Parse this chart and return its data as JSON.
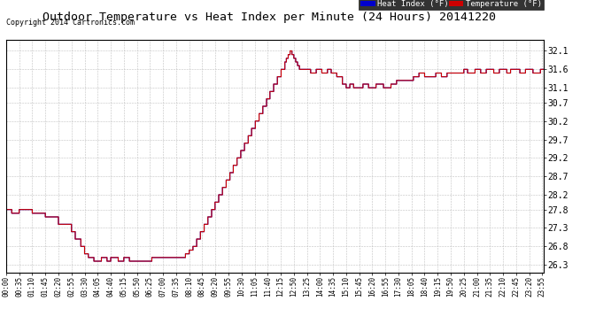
{
  "title": "Outdoor Temperature vs Heat Index per Minute (24 Hours) 20141220",
  "copyright_text": "Copyright 2014 Cartronics.com",
  "legend_heat_label": "Heat Index (°F)",
  "legend_temp_label": "Temperature (°F)",
  "heat_index_color": "#0000cc",
  "temp_color": "#cc0000",
  "background_color": "#ffffff",
  "plot_bg_color": "#ffffff",
  "grid_color": "#bbbbbb",
  "title_fontsize": 10,
  "copyright_fontsize": 6.5,
  "ytick_values": [
    32.1,
    31.6,
    31.1,
    30.7,
    30.2,
    29.7,
    29.2,
    28.7,
    28.2,
    27.8,
    27.3,
    26.8,
    26.3
  ],
  "ymin": 26.1,
  "ymax": 32.4,
  "xtick_labels": [
    "00:00",
    "00:35",
    "01:10",
    "01:45",
    "02:20",
    "02:55",
    "03:30",
    "04:05",
    "04:40",
    "05:15",
    "05:50",
    "06:25",
    "07:00",
    "07:35",
    "08:10",
    "08:45",
    "09:20",
    "09:55",
    "10:30",
    "11:05",
    "11:40",
    "12:15",
    "12:50",
    "13:25",
    "14:00",
    "14:35",
    "15:10",
    "15:45",
    "16:20",
    "16:55",
    "17:30",
    "18:05",
    "18:40",
    "19:15",
    "19:50",
    "20:25",
    "21:00",
    "21:35",
    "22:10",
    "22:45",
    "23:20",
    "23:55"
  ]
}
